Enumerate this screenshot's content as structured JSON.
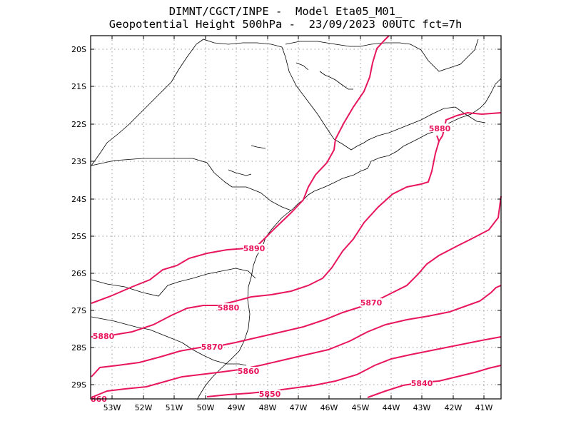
{
  "header": {
    "line1": "DIMNT/CGCT/INPE -  Model Eta05_M01_",
    "line2": "Geopotential Height 500hPa -  23/09/2023 00UTC fct=7h"
  },
  "map": {
    "x_ticks": [
      "53W",
      "52W",
      "51W",
      "50W",
      "49W",
      "48W",
      "47W",
      "46W",
      "45W",
      "44W",
      "43W",
      "42W",
      "41W"
    ],
    "y_ticks": [
      "20S",
      "21S",
      "22S",
      "23S",
      "24S",
      "25S",
      "26S",
      "27S",
      "28S",
      "29S"
    ],
    "grid": "dotted",
    "contour_color": "#e8165e",
    "contour_labels": [
      "5880",
      "5890",
      "5880",
      "5870",
      "5880",
      "5870",
      "5860",
      "5850",
      "5840",
      "860"
    ]
  }
}
